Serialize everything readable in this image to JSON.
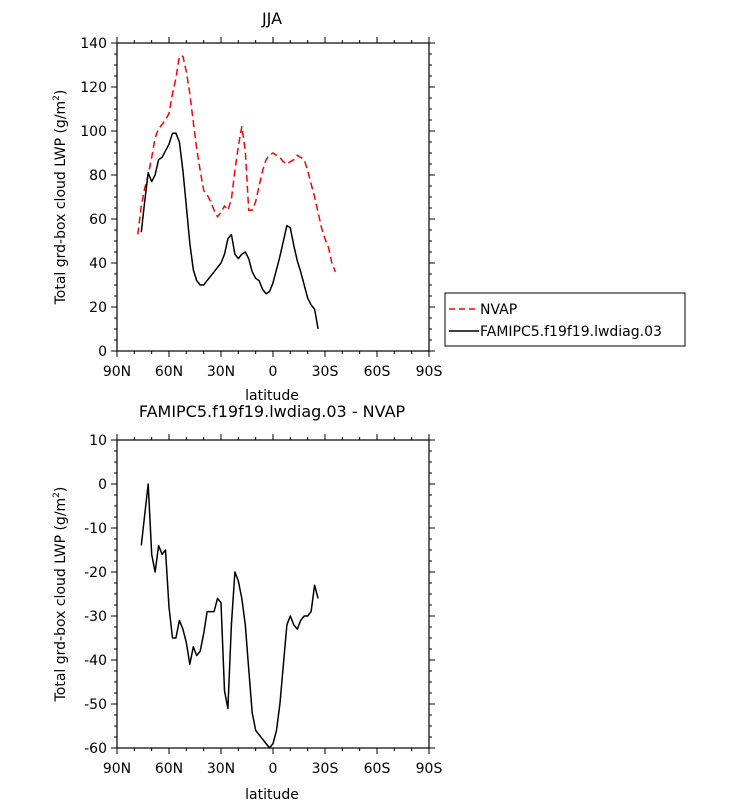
{
  "chart_data": [
    {
      "type": "line",
      "title": "JJA",
      "xlabel": "latitude",
      "ylabel_main": "Total grd-box cloud LWP",
      "ylabel_unit": "(g/m",
      "ylabel_sup": "2",
      "ylabel_close": ")",
      "xlim": [
        90,
        -90
      ],
      "ylim": [
        0,
        140
      ],
      "x_ticks": [
        90,
        60,
        30,
        0,
        -30,
        -60,
        -90
      ],
      "x_tick_labels": [
        "90N",
        "60N",
        "30N",
        "0",
        "30S",
        "60S",
        "90S"
      ],
      "y_ticks": [
        0,
        20,
        40,
        60,
        80,
        100,
        120,
        140
      ],
      "y_tick_labels": [
        "0",
        "20",
        "40",
        "60",
        "80",
        "100",
        "120",
        "140"
      ],
      "legend": {
        "placement": "right",
        "entries": [
          "NVAP",
          "FAMIPC5.f19f19.lwdiag.03"
        ]
      },
      "series": [
        {
          "name": "NVAP",
          "color": "#ff0000",
          "dash": "dashed",
          "points": [
            [
              78,
              53
            ],
            [
              76,
              66
            ],
            [
              74,
              74
            ],
            [
              72,
              80
            ],
            [
              70,
              88
            ],
            [
              68,
              97
            ],
            [
              66,
              101
            ],
            [
              64,
              103
            ],
            [
              62,
              105
            ],
            [
              60,
              108
            ],
            [
              58,
              117
            ],
            [
              56,
              124
            ],
            [
              54,
              134
            ],
            [
              52,
              134
            ],
            [
              50,
              127
            ],
            [
              48,
              117
            ],
            [
              46,
              104
            ],
            [
              44,
              92
            ],
            [
              42,
              82
            ],
            [
              40,
              73
            ],
            [
              38,
              71
            ],
            [
              36,
              68
            ],
            [
              34,
              64
            ],
            [
              32,
              61
            ],
            [
              30,
              63
            ],
            [
              28,
              66
            ],
            [
              26,
              64
            ],
            [
              24,
              69
            ],
            [
              22,
              82
            ],
            [
              20,
              93
            ],
            [
              18,
              102
            ],
            [
              16,
              91
            ],
            [
              14,
              64
            ],
            [
              12,
              64
            ],
            [
              10,
              68
            ],
            [
              8,
              75
            ],
            [
              6,
              82
            ],
            [
              4,
              87
            ],
            [
              2,
              89
            ],
            [
              0,
              90
            ],
            [
              -2,
              89
            ],
            [
              -4,
              88
            ],
            [
              -6,
              86
            ],
            [
              -8,
              85
            ],
            [
              -10,
              86
            ],
            [
              -12,
              87
            ],
            [
              -14,
              89
            ],
            [
              -16,
              88
            ],
            [
              -18,
              87
            ],
            [
              -20,
              82
            ],
            [
              -22,
              76
            ],
            [
              -24,
              70
            ],
            [
              -26,
              63
            ],
            [
              -28,
              56
            ],
            [
              -30,
              51
            ],
            [
              -32,
              47
            ],
            [
              -34,
              40
            ],
            [
              -36,
              36
            ]
          ]
        },
        {
          "name": "FAMIPC5.f19f19.lwdiag.03",
          "color": "#000000",
          "dash": "solid",
          "points": [
            [
              76,
              54
            ],
            [
              74,
              68
            ],
            [
              72,
              81
            ],
            [
              70,
              77
            ],
            [
              68,
              80
            ],
            [
              66,
              87
            ],
            [
              64,
              88
            ],
            [
              62,
              91
            ],
            [
              60,
              94
            ],
            [
              58,
              99
            ],
            [
              56,
              99
            ],
            [
              54,
              95
            ],
            [
              52,
              82
            ],
            [
              50,
              66
            ],
            [
              48,
              49
            ],
            [
              46,
              37
            ],
            [
              44,
              32
            ],
            [
              42,
              30
            ],
            [
              40,
              30
            ],
            [
              38,
              32
            ],
            [
              36,
              34
            ],
            [
              34,
              36
            ],
            [
              32,
              38
            ],
            [
              30,
              40
            ],
            [
              28,
              44
            ],
            [
              26,
              51
            ],
            [
              24,
              53
            ],
            [
              22,
              44
            ],
            [
              20,
              42
            ],
            [
              18,
              44
            ],
            [
              16,
              45
            ],
            [
              14,
              42
            ],
            [
              12,
              36
            ],
            [
              10,
              33
            ],
            [
              8,
              32
            ],
            [
              6,
              28
            ],
            [
              4,
              26
            ],
            [
              2,
              27
            ],
            [
              0,
              31
            ],
            [
              -2,
              37
            ],
            [
              -4,
              43
            ],
            [
              -6,
              50
            ],
            [
              -8,
              57
            ],
            [
              -10,
              56
            ],
            [
              -12,
              48
            ],
            [
              -14,
              41
            ],
            [
              -16,
              36
            ],
            [
              -18,
              30
            ],
            [
              -20,
              24
            ],
            [
              -22,
              21
            ],
            [
              -24,
              19
            ],
            [
              -26,
              10
            ]
          ]
        }
      ]
    },
    {
      "type": "line",
      "title": "FAMIPC5.f19f19.lwdiag.03 - NVAP",
      "xlabel": "latitude",
      "ylabel_main": "Total grd-box cloud LWP",
      "ylabel_unit": "(g/m",
      "ylabel_sup": "2",
      "ylabel_close": ")",
      "xlim": [
        90,
        -90
      ],
      "ylim": [
        -60,
        10
      ],
      "x_ticks": [
        90,
        60,
        30,
        0,
        -30,
        -60,
        -90
      ],
      "x_tick_labels": [
        "90N",
        "60N",
        "30N",
        "0",
        "30S",
        "60S",
        "90S"
      ],
      "y_ticks": [
        -60,
        -50,
        -40,
        -30,
        -20,
        -10,
        0,
        10
      ],
      "y_tick_labels": [
        "-60",
        "-50",
        "-40",
        "-30",
        "-20",
        "-10",
        "0",
        "10"
      ],
      "series": [
        {
          "color": "#000000",
          "dash": "solid",
          "points": [
            [
              76,
              -14
            ],
            [
              74,
              -7
            ],
            [
              72,
              0
            ],
            [
              70,
              -16
            ],
            [
              68,
              -20
            ],
            [
              66,
              -14
            ],
            [
              64,
              -16
            ],
            [
              62,
              -15
            ],
            [
              60,
              -28
            ],
            [
              58,
              -35
            ],
            [
              56,
              -35
            ],
            [
              54,
              -31
            ],
            [
              52,
              -33
            ],
            [
              50,
              -36
            ],
            [
              48,
              -41
            ],
            [
              46,
              -37
            ],
            [
              44,
              -39
            ],
            [
              42,
              -38
            ],
            [
              40,
              -34
            ],
            [
              38,
              -29
            ],
            [
              36,
              -29
            ],
            [
              34,
              -29
            ],
            [
              32,
              -26
            ],
            [
              30,
              -27
            ],
            [
              28,
              -47
            ],
            [
              26,
              -51
            ],
            [
              24,
              -32
            ],
            [
              22,
              -20
            ],
            [
              20,
              -22
            ],
            [
              18,
              -26
            ],
            [
              16,
              -32
            ],
            [
              14,
              -42
            ],
            [
              12,
              -52
            ],
            [
              10,
              -56
            ],
            [
              8,
              -57
            ],
            [
              6,
              -58
            ],
            [
              4,
              -59
            ],
            [
              2,
              -60
            ],
            [
              0,
              -59
            ],
            [
              -2,
              -56
            ],
            [
              -4,
              -50
            ],
            [
              -6,
              -41
            ],
            [
              -8,
              -32
            ],
            [
              -10,
              -30
            ],
            [
              -12,
              -32
            ],
            [
              -14,
              -33
            ],
            [
              -16,
              -31
            ],
            [
              -18,
              -30
            ],
            [
              -20,
              -30
            ],
            [
              -22,
              -29
            ],
            [
              -24,
              -23
            ],
            [
              -26,
              -26
            ]
          ]
        }
      ]
    }
  ]
}
